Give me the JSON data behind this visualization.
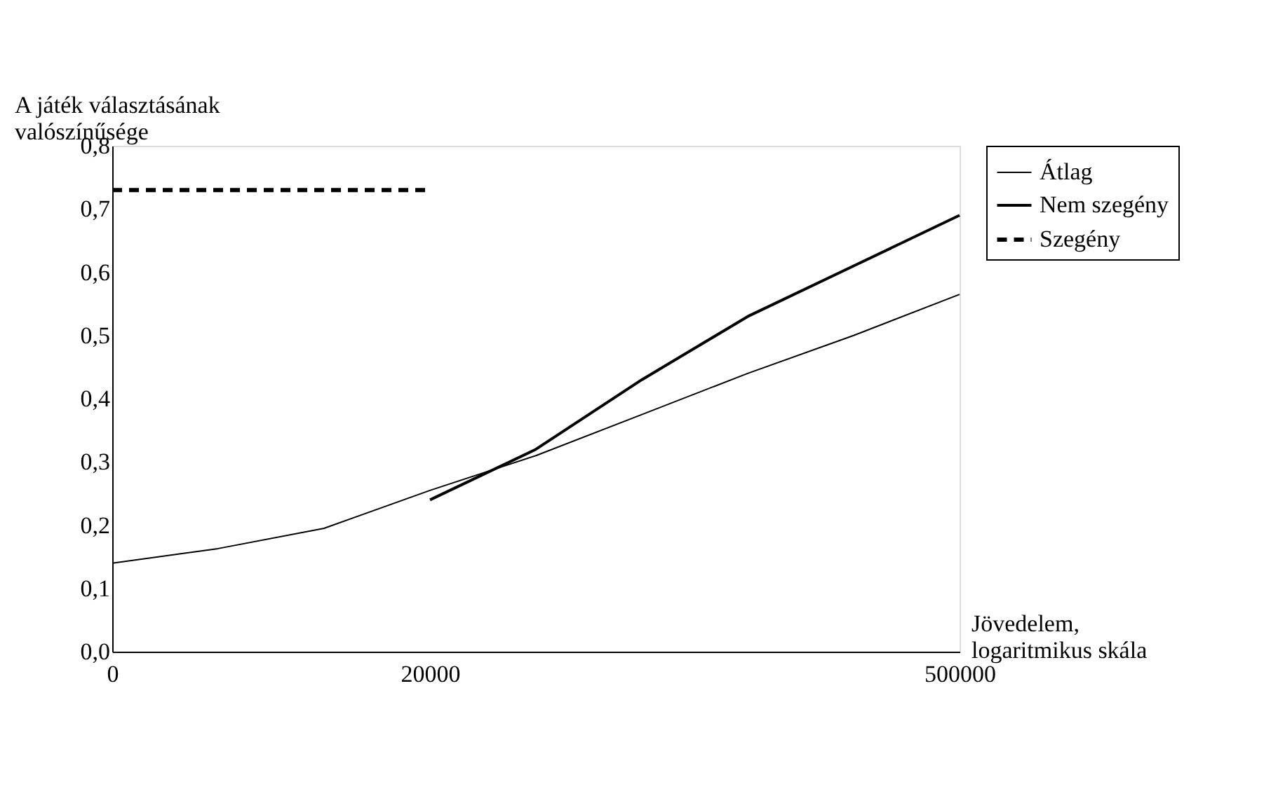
{
  "chart_data": {
    "type": "line",
    "ylabel": "A játék választásának valószínűsége",
    "xlabel": "Jövedelem, logaritmikus skála",
    "categories": [
      "0",
      null,
      null,
      "20000",
      null,
      null,
      null,
      null,
      "500000"
    ],
    "ylim": [
      0,
      0.8
    ],
    "yticks": [
      {
        "value": 0,
        "label": "0,0"
      },
      {
        "value": 0.1,
        "label": "0,1"
      },
      {
        "value": 0.2,
        "label": "0,2"
      },
      {
        "value": 0.3,
        "label": "0,3"
      },
      {
        "value": 0.4,
        "label": "0,4"
      },
      {
        "value": 0.5,
        "label": "0,5"
      },
      {
        "value": 0.6,
        "label": "0,6"
      },
      {
        "value": 0.7,
        "label": "0,7"
      },
      {
        "value": 0.8,
        "label": "0,8"
      }
    ],
    "grid": false,
    "legend": "right",
    "marker": "none",
    "series": [
      {
        "name": "Átlag",
        "color": "#000000",
        "line_style": "solid",
        "values": [
          0.14,
          0.163,
          0.195,
          0.255,
          0.31,
          0.375,
          0.44,
          0.5,
          0.565
        ]
      },
      {
        "name": "Nem szegény",
        "color": "#000000",
        "line_style": "solid",
        "values": [
          null,
          null,
          null,
          0.24,
          0.32,
          0.43,
          0.53,
          0.61,
          0.69
        ]
      },
      {
        "name": "Szegény",
        "color": "#000000",
        "line_style": "dashed",
        "values": [
          0.73,
          0.73,
          0.73,
          0.73,
          null,
          null,
          null,
          null,
          null
        ]
      }
    ]
  }
}
